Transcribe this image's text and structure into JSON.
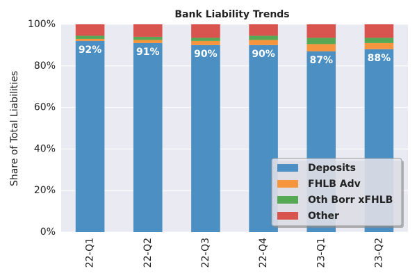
{
  "chart_data": {
    "type": "stacked_bar",
    "title": "Bank Liability Trends",
    "ylabel": "Share of Total Liabilities",
    "categories": [
      "22-Q1",
      "22-Q2",
      "22-Q3",
      "22-Q4",
      "23-Q1",
      "23-Q2"
    ],
    "series": [
      {
        "name": "Deposits",
        "color": "#4c8fc3",
        "values": [
          92,
          91,
          90,
          90,
          87,
          88
        ],
        "value_labels": [
          "92%",
          "91%",
          "90%",
          "90%",
          "87%",
          "88%"
        ]
      },
      {
        "name": "FHLB Adv",
        "color": "#f5953e",
        "values": [
          1,
          1.5,
          2,
          2.5,
          3.5,
          3
        ]
      },
      {
        "name": "Oth Borr xFHLB",
        "color": "#57a855",
        "values": [
          1.5,
          1.5,
          1.5,
          2,
          3,
          2.5
        ]
      },
      {
        "name": "Other",
        "color": "#d9534f",
        "values": [
          5.5,
          6,
          6.5,
          5.5,
          6.5,
          6.5
        ]
      }
    ],
    "ylim": [
      0,
      100
    ],
    "yticks": [
      {
        "value": 0,
        "label": "0%"
      },
      {
        "value": 20,
        "label": "20%"
      },
      {
        "value": 40,
        "label": "40%"
      },
      {
        "value": 60,
        "label": "60%"
      },
      {
        "value": 80,
        "label": "80%"
      },
      {
        "value": 100,
        "label": "100%"
      }
    ],
    "grid": true,
    "legend": "lower right"
  }
}
